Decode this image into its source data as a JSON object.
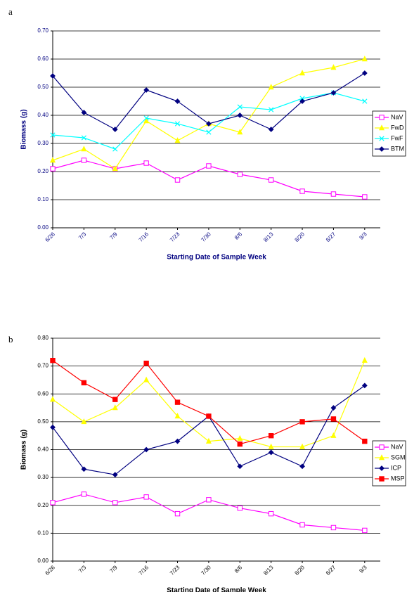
{
  "chart_data": [
    {
      "type": "line",
      "panel": "a",
      "x_label": "Starting Date of Sample Week",
      "y_label": "Biomass (g)",
      "text_color": "#000080",
      "categories": [
        "6/26",
        "7/3",
        "7/9",
        "7/16",
        "7/23",
        "7/30",
        "8/6",
        "8/13",
        "8/20",
        "8/27",
        "9/3"
      ],
      "ylim": [
        0,
        0.7
      ],
      "yticks": [
        {
          "value": 0,
          "label": "0.00"
        },
        {
          "value": 0.1,
          "label": "0.10"
        },
        {
          "value": 0.2,
          "label": "0.20"
        },
        {
          "value": 0.3,
          "label": "0.30"
        },
        {
          "value": 0.4,
          "label": "0.40"
        },
        {
          "value": 0.5,
          "label": "0.50"
        },
        {
          "value": 0.6,
          "label": "0.60"
        },
        {
          "value": 0.7,
          "label": "0.70"
        }
      ],
      "grid": true,
      "legend": "right",
      "series": [
        {
          "name": "NaV",
          "color": "#ff00ff",
          "marker": "open-square",
          "values": [
            0.21,
            0.24,
            0.21,
            0.23,
            0.17,
            0.22,
            0.19,
            0.17,
            0.13,
            0.12,
            0.11
          ]
        },
        {
          "name": "FwD",
          "color": "#ffff00",
          "marker": "triangle",
          "values": [
            0.24,
            0.28,
            0.21,
            0.38,
            0.31,
            0.37,
            0.34,
            0.5,
            0.55,
            0.57,
            0.6
          ]
        },
        {
          "name": "FwF",
          "color": "#00ffff",
          "marker": "cross",
          "values": [
            0.33,
            0.32,
            0.28,
            0.39,
            0.37,
            0.34,
            0.43,
            0.42,
            0.46,
            0.48,
            0.45
          ]
        },
        {
          "name": "BTM",
          "color": "#000080",
          "marker": "diamond",
          "values": [
            0.54,
            0.41,
            0.35,
            0.49,
            0.45,
            0.37,
            0.4,
            0.35,
            0.45,
            0.48,
            0.55
          ]
        }
      ]
    },
    {
      "type": "line",
      "panel": "b",
      "x_label": "Starting Date of Sample Week",
      "y_label": "Biomass (g)",
      "text_color": "#000000",
      "categories": [
        "6/26",
        "7/3",
        "7/9",
        "7/16",
        "7/23",
        "7/30",
        "8/6",
        "8/13",
        "8/20",
        "8/27",
        "9/3"
      ],
      "ylim": [
        0,
        0.8
      ],
      "yticks": [
        {
          "value": 0,
          "label": "0.00"
        },
        {
          "value": 0.1,
          "label": "0.10"
        },
        {
          "value": 0.2,
          "label": "0.20"
        },
        {
          "value": 0.3,
          "label": "0.30"
        },
        {
          "value": 0.4,
          "label": "0.40"
        },
        {
          "value": 0.5,
          "label": "0.50"
        },
        {
          "value": 0.6,
          "label": "0.60"
        },
        {
          "value": 0.7,
          "label": "0.70"
        },
        {
          "value": 0.8,
          "label": "0.80"
        }
      ],
      "grid": true,
      "legend": "right",
      "series": [
        {
          "name": "NaV",
          "color": "#ff00ff",
          "marker": "open-square",
          "values": [
            0.21,
            0.24,
            0.21,
            0.23,
            0.17,
            0.22,
            0.19,
            0.17,
            0.13,
            0.12,
            0.11
          ]
        },
        {
          "name": "SGM",
          "color": "#ffff00",
          "marker": "triangle",
          "values": [
            0.58,
            0.5,
            0.55,
            0.65,
            0.52,
            0.43,
            0.44,
            0.41,
            0.41,
            0.45,
            0.72
          ]
        },
        {
          "name": "ICP",
          "color": "#000080",
          "marker": "diamond",
          "values": [
            0.48,
            0.33,
            0.31,
            0.4,
            0.43,
            0.52,
            0.34,
            0.39,
            0.34,
            0.55,
            0.63
          ]
        },
        {
          "name": "MSP",
          "color": "#ff0000",
          "marker": "square",
          "values": [
            0.72,
            0.64,
            0.58,
            0.71,
            0.57,
            0.52,
            0.42,
            0.45,
            0.5,
            0.51,
            0.43
          ]
        }
      ]
    }
  ]
}
